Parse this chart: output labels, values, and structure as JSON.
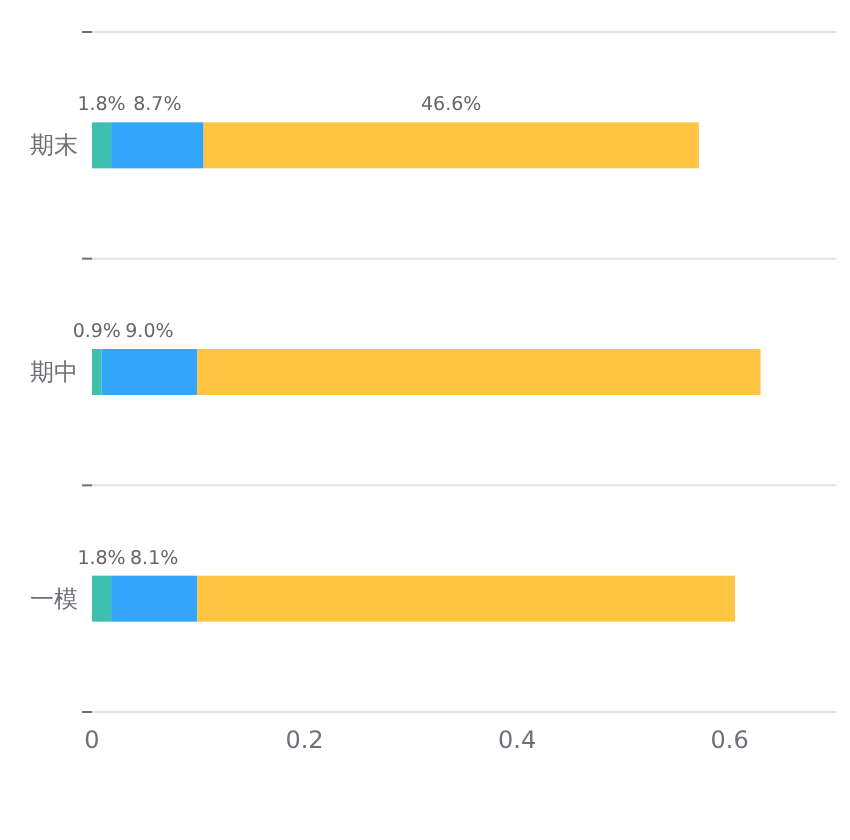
{
  "chart_data": {
    "type": "bar",
    "orientation": "horizontal",
    "stacked": true,
    "categories": [
      "期末",
      "期中",
      "一模"
    ],
    "series": [
      {
        "color": "#3fbfad",
        "values": [
          0.018,
          0.009,
          0.018
        ],
        "value_labels": [
          "1.8%",
          "0.9%",
          "1.8%"
        ]
      },
      {
        "color": "#33a5fb",
        "values": [
          0.087,
          0.09,
          0.081
        ],
        "value_labels": [
          "8.7%",
          "9.0%",
          "8.1%"
        ]
      },
      {
        "color": "#fec442",
        "values": [
          0.466,
          0.53,
          0.506
        ],
        "value_labels": [
          "46.6%",
          null,
          null
        ]
      }
    ],
    "xlim": [
      0,
      0.7
    ],
    "xticks": [
      0,
      0.2,
      0.4,
      0.6
    ],
    "grid": "y"
  }
}
